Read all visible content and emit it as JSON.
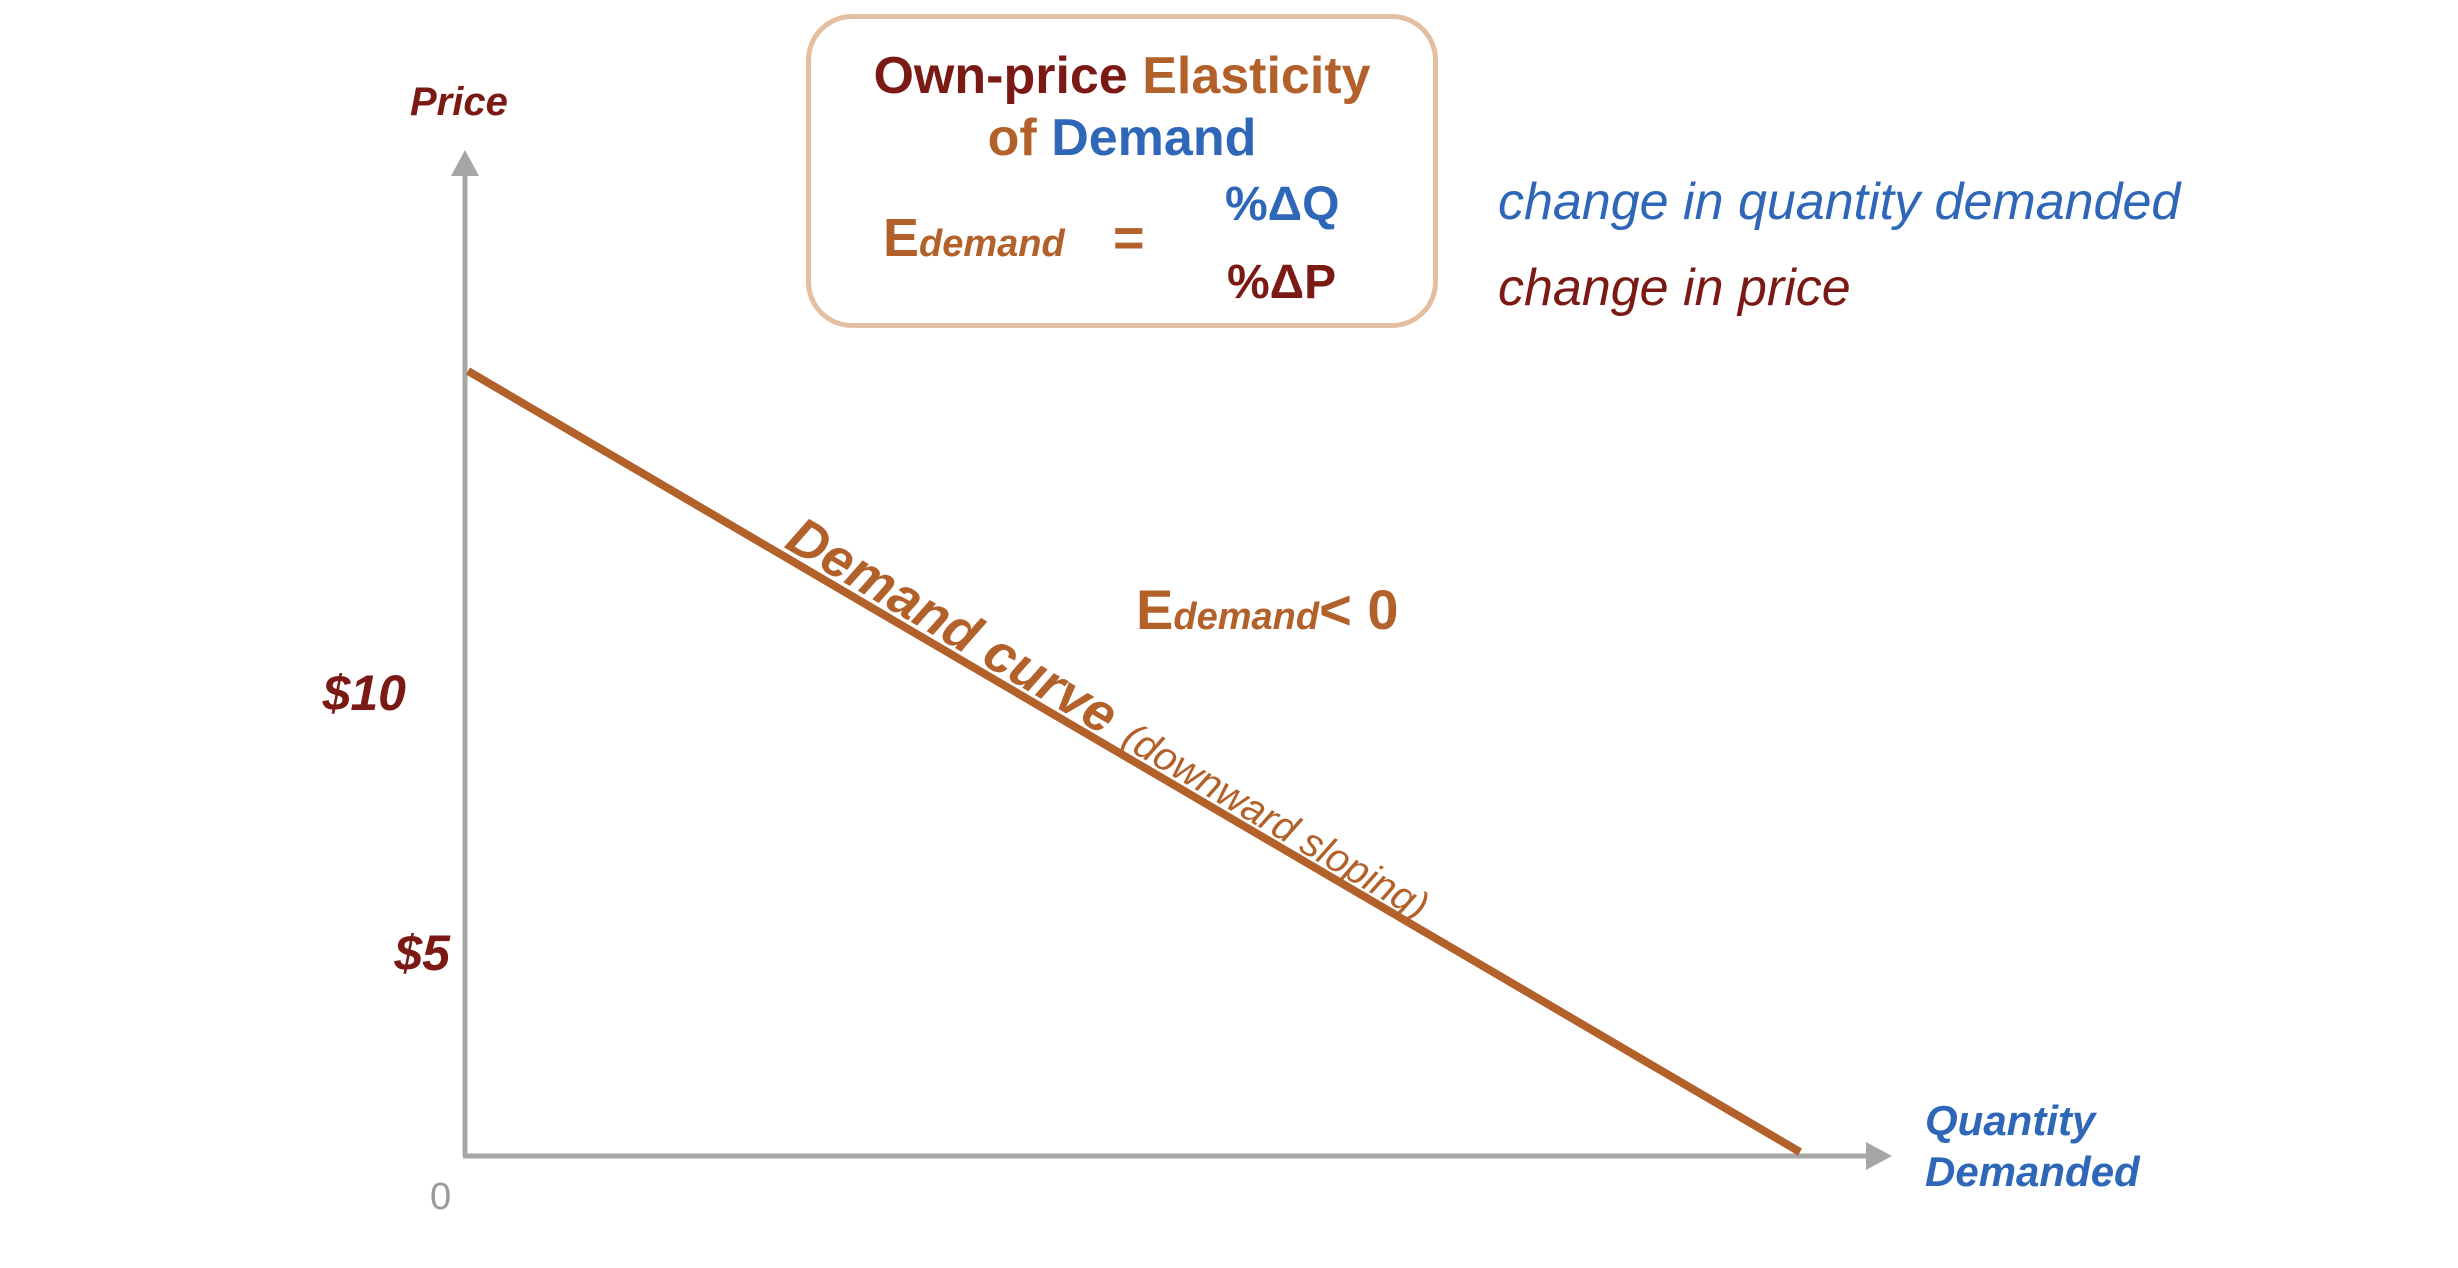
{
  "diagram": {
    "axes": {
      "y_label": "Price",
      "x_label": "Quantity Demanded",
      "origin_label": "0",
      "y_ticks": [
        {
          "label": "$10",
          "value": 10
        },
        {
          "label": "$5",
          "value": 5
        }
      ]
    },
    "formula_box": {
      "title_part1": "Own-price",
      "title_part2": "Elasticity",
      "title_part3": "of",
      "title_part4": "Demand",
      "lhs_main": "E",
      "lhs_sub": "demand",
      "equals": "=",
      "numerator": "%ΔQ",
      "denominator": "%ΔP"
    },
    "legend": {
      "numerator_meaning": "change in quantity demanded",
      "denominator_meaning": "change in price"
    },
    "curve": {
      "label": "Demand curve",
      "note": "(downward sloping)"
    },
    "inequality": {
      "main": "E",
      "sub": "demand",
      "relation": "< 0"
    },
    "colors": {
      "axis": "#a6a6a6",
      "curve": "#b3612b",
      "dark_red": "#7b1a14",
      "blue": "#2e67b8",
      "box_border": "#e3bfa2"
    }
  }
}
